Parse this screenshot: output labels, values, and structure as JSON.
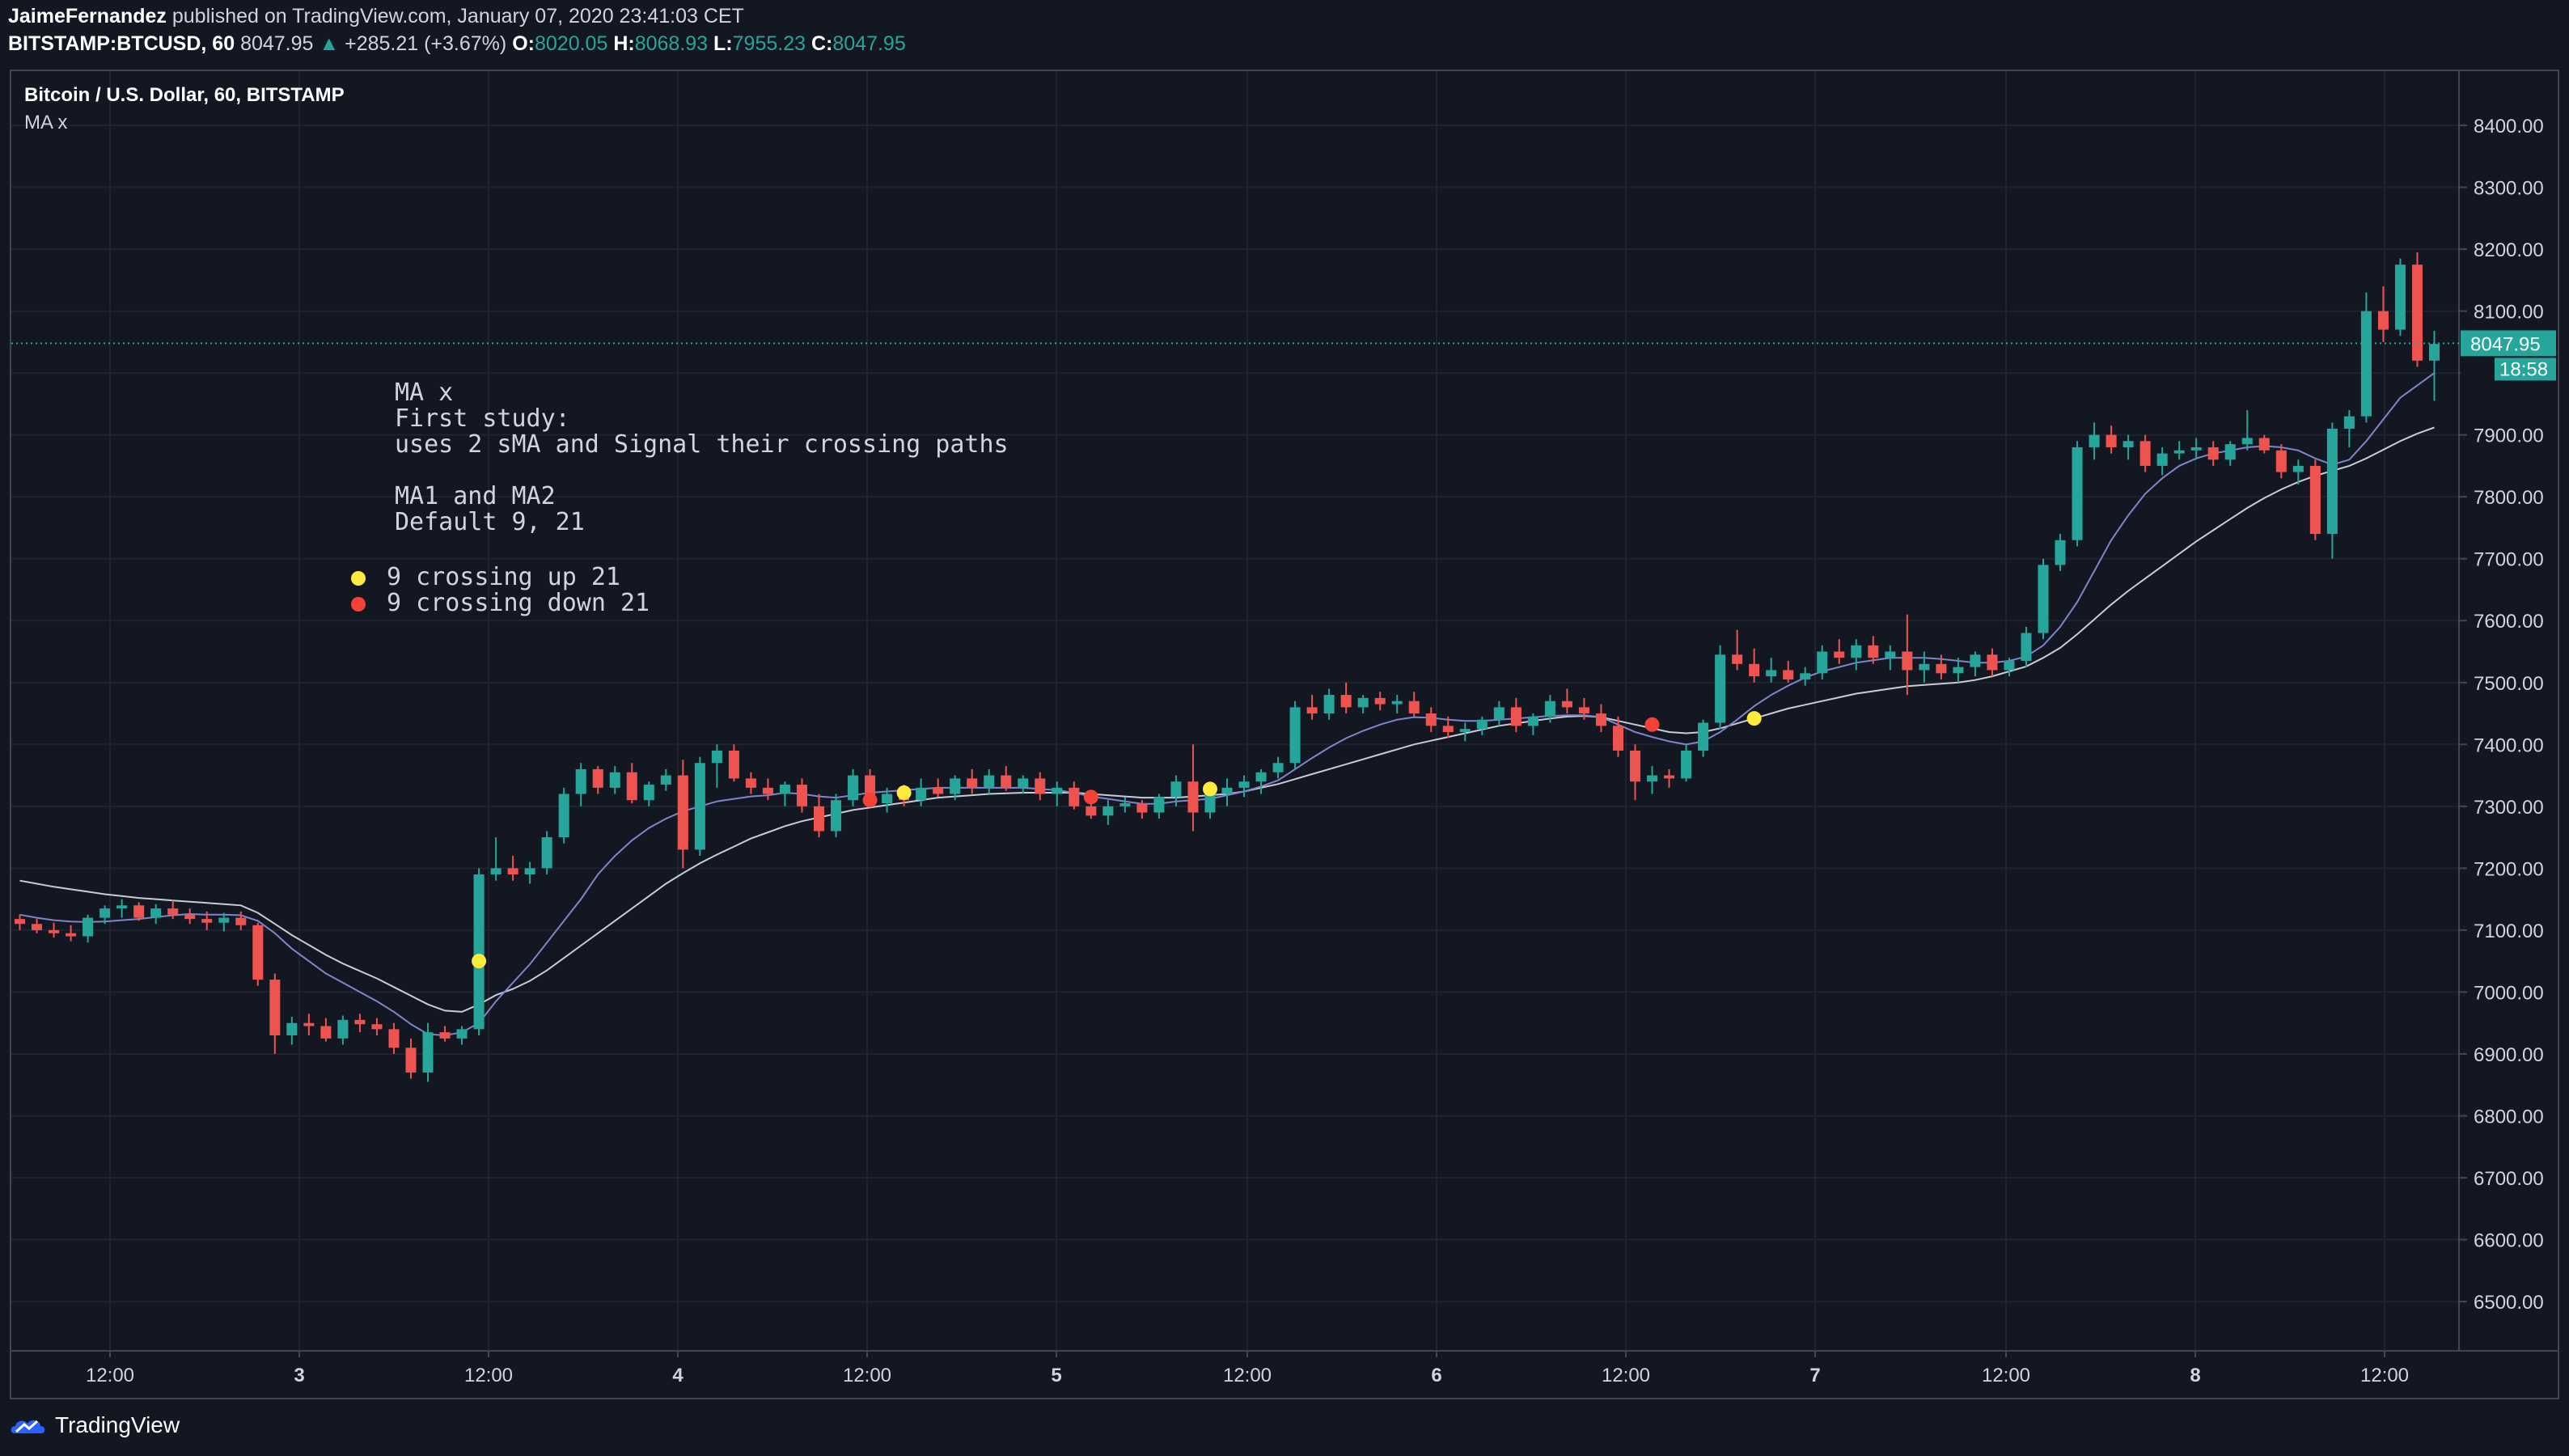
{
  "header": {
    "author": "JaimeFernandez",
    "published_text": "published on TradingView.com, January 07, 2020 23:41:03 CET"
  },
  "quote": {
    "symbol": "BITSTAMP:BTCUSD, 60",
    "last": "8047.95",
    "change": "+285.21 (+3.67%)",
    "o_label": "O:",
    "o_val": "8020.05",
    "h_label": "H:",
    "h_val": "8068.93",
    "l_label": "L:",
    "l_val": "7955.23",
    "c_label": "C:",
    "c_val": "8047.95"
  },
  "legend": {
    "title": "Bitcoin / U.S. Dollar, 60, BITSTAMP",
    "study": "MA x"
  },
  "note": {
    "text": "MA x\nFirst study:\nuses 2 sMA and Signal their crossing paths\n\nMA1 and MA2\nDefault 9, 21",
    "bullet_up": "9 crossing up 21",
    "bullet_down": "9 crossing down 21"
  },
  "price_axis": {
    "labels": [
      "8400.00",
      "8300.00",
      "8200.00",
      "8100.00",
      "8000.00",
      "7900.00",
      "7800.00",
      "7700.00",
      "7600.00",
      "7500.00",
      "7400.00",
      "7300.00",
      "7200.00",
      "7100.00",
      "7000.00",
      "6900.00",
      "6800.00",
      "6700.00",
      "6600.00",
      "6500.00"
    ],
    "last_price_tag": "8047.95",
    "countdown_tag": "18:58"
  },
  "time_axis": {
    "labels": [
      "12:00",
      "3",
      "12:00",
      "4",
      "12:00",
      "5",
      "12:00",
      "6",
      "12:00",
      "7",
      "12:00",
      "8",
      "12:00"
    ]
  },
  "footer": {
    "brand": "TradingView"
  },
  "colors": {
    "background": "#131722",
    "up": "#26a69a",
    "down": "#ef5350",
    "cross_up": "#ffeb3b",
    "cross_down": "#f44336"
  },
  "chart_data": {
    "type": "candlestick",
    "title": "Bitcoin / U.S. Dollar, 60, BITSTAMP",
    "interval": "60",
    "ylim": [
      6450,
      8500
    ],
    "ohlc": [
      [
        7118,
        7125,
        7100,
        7110
      ],
      [
        7110,
        7118,
        7095,
        7100
      ],
      [
        7100,
        7112,
        7088,
        7095
      ],
      [
        7095,
        7108,
        7082,
        7090
      ],
      [
        7090,
        7125,
        7080,
        7120
      ],
      [
        7120,
        7140,
        7110,
        7135
      ],
      [
        7135,
        7150,
        7120,
        7140
      ],
      [
        7140,
        7145,
        7115,
        7120
      ],
      [
        7120,
        7142,
        7110,
        7135
      ],
      [
        7135,
        7148,
        7118,
        7125
      ],
      [
        7125,
        7135,
        7110,
        7118
      ],
      [
        7118,
        7130,
        7100,
        7112
      ],
      [
        7112,
        7128,
        7098,
        7120
      ],
      [
        7120,
        7130,
        7100,
        7108
      ],
      [
        7108,
        7112,
        7010,
        7020
      ],
      [
        7020,
        7030,
        6900,
        6930
      ],
      [
        6930,
        6960,
        6915,
        6950
      ],
      [
        6950,
        6965,
        6930,
        6945
      ],
      [
        6945,
        6958,
        6920,
        6925
      ],
      [
        6925,
        6962,
        6915,
        6955
      ],
      [
        6955,
        6965,
        6935,
        6948
      ],
      [
        6948,
        6958,
        6930,
        6940
      ],
      [
        6940,
        6950,
        6900,
        6910
      ],
      [
        6910,
        6925,
        6860,
        6870
      ],
      [
        6870,
        6950,
        6855,
        6935
      ],
      [
        6935,
        6945,
        6920,
        6925
      ],
      [
        6925,
        6945,
        6915,
        6940
      ],
      [
        6940,
        7200,
        6930,
        7190
      ],
      [
        7190,
        7250,
        7180,
        7200
      ],
      [
        7200,
        7220,
        7180,
        7190
      ],
      [
        7190,
        7210,
        7175,
        7200
      ],
      [
        7200,
        7260,
        7190,
        7250
      ],
      [
        7250,
        7330,
        7240,
        7320
      ],
      [
        7320,
        7370,
        7300,
        7360
      ],
      [
        7360,
        7365,
        7320,
        7330
      ],
      [
        7330,
        7365,
        7320,
        7355
      ],
      [
        7355,
        7370,
        7305,
        7310
      ],
      [
        7310,
        7340,
        7300,
        7335
      ],
      [
        7335,
        7360,
        7325,
        7350
      ],
      [
        7350,
        7375,
        7200,
        7230
      ],
      [
        7230,
        7380,
        7220,
        7370
      ],
      [
        7370,
        7400,
        7330,
        7390
      ],
      [
        7390,
        7400,
        7340,
        7345
      ],
      [
        7345,
        7355,
        7320,
        7330
      ],
      [
        7330,
        7345,
        7310,
        7320
      ],
      [
        7320,
        7340,
        7300,
        7335
      ],
      [
        7335,
        7345,
        7290,
        7300
      ],
      [
        7300,
        7320,
        7250,
        7260
      ],
      [
        7260,
        7320,
        7250,
        7310
      ],
      [
        7310,
        7360,
        7300,
        7350
      ],
      [
        7350,
        7360,
        7300,
        7305
      ],
      [
        7305,
        7330,
        7290,
        7320
      ],
      [
        7320,
        7335,
        7300,
        7310
      ],
      [
        7310,
        7345,
        7300,
        7330
      ],
      [
        7330,
        7345,
        7315,
        7320
      ],
      [
        7320,
        7350,
        7310,
        7345
      ],
      [
        7345,
        7360,
        7320,
        7330
      ],
      [
        7330,
        7360,
        7320,
        7350
      ],
      [
        7350,
        7365,
        7325,
        7330
      ],
      [
        7330,
        7350,
        7320,
        7345
      ],
      [
        7345,
        7355,
        7310,
        7320
      ],
      [
        7320,
        7340,
        7300,
        7330
      ],
      [
        7330,
        7340,
        7295,
        7300
      ],
      [
        7300,
        7320,
        7280,
        7285
      ],
      [
        7285,
        7310,
        7270,
        7300
      ],
      [
        7300,
        7315,
        7290,
        7305
      ],
      [
        7305,
        7310,
        7280,
        7290
      ],
      [
        7290,
        7320,
        7280,
        7315
      ],
      [
        7315,
        7350,
        7300,
        7340
      ],
      [
        7340,
        7400,
        7260,
        7290
      ],
      [
        7290,
        7330,
        7280,
        7320
      ],
      [
        7320,
        7345,
        7300,
        7330
      ],
      [
        7330,
        7350,
        7315,
        7340
      ],
      [
        7340,
        7360,
        7320,
        7355
      ],
      [
        7355,
        7380,
        7345,
        7370
      ],
      [
        7370,
        7470,
        7360,
        7460
      ],
      [
        7460,
        7480,
        7440,
        7450
      ],
      [
        7450,
        7490,
        7440,
        7480
      ],
      [
        7480,
        7500,
        7450,
        7460
      ],
      [
        7460,
        7480,
        7450,
        7475
      ],
      [
        7475,
        7485,
        7455,
        7465
      ],
      [
        7465,
        7480,
        7450,
        7470
      ],
      [
        7470,
        7485,
        7445,
        7450
      ],
      [
        7450,
        7460,
        7420,
        7430
      ],
      [
        7430,
        7445,
        7410,
        7420
      ],
      [
        7420,
        7435,
        7405,
        7425
      ],
      [
        7425,
        7445,
        7415,
        7440
      ],
      [
        7440,
        7470,
        7430,
        7460
      ],
      [
        7460,
        7475,
        7420,
        7430
      ],
      [
        7430,
        7450,
        7415,
        7445
      ],
      [
        7445,
        7480,
        7435,
        7470
      ],
      [
        7470,
        7490,
        7450,
        7460
      ],
      [
        7460,
        7475,
        7440,
        7450
      ],
      [
        7450,
        7465,
        7420,
        7430
      ],
      [
        7430,
        7445,
        7380,
        7390
      ],
      [
        7390,
        7400,
        7310,
        7340
      ],
      [
        7340,
        7365,
        7320,
        7350
      ],
      [
        7350,
        7360,
        7330,
        7345
      ],
      [
        7345,
        7400,
        7340,
        7390
      ],
      [
        7390,
        7440,
        7380,
        7435
      ],
      [
        7435,
        7560,
        7425,
        7545
      ],
      [
        7545,
        7585,
        7520,
        7530
      ],
      [
        7530,
        7555,
        7500,
        7510
      ],
      [
        7510,
        7540,
        7500,
        7520
      ],
      [
        7520,
        7535,
        7500,
        7505
      ],
      [
        7505,
        7525,
        7495,
        7515
      ],
      [
        7515,
        7560,
        7505,
        7550
      ],
      [
        7550,
        7570,
        7530,
        7540
      ],
      [
        7540,
        7570,
        7520,
        7560
      ],
      [
        7560,
        7575,
        7530,
        7540
      ],
      [
        7540,
        7560,
        7520,
        7550
      ],
      [
        7550,
        7610,
        7480,
        7520
      ],
      [
        7520,
        7550,
        7500,
        7530
      ],
      [
        7530,
        7545,
        7505,
        7515
      ],
      [
        7515,
        7540,
        7500,
        7525
      ],
      [
        7525,
        7550,
        7510,
        7545
      ],
      [
        7545,
        7555,
        7510,
        7520
      ],
      [
        7520,
        7540,
        7510,
        7535
      ],
      [
        7535,
        7590,
        7525,
        7580
      ],
      [
        7580,
        7700,
        7570,
        7690
      ],
      [
        7690,
        7740,
        7680,
        7730
      ],
      [
        7730,
        7890,
        7720,
        7880
      ],
      [
        7880,
        7920,
        7860,
        7900
      ],
      [
        7900,
        7915,
        7870,
        7880
      ],
      [
        7880,
        7900,
        7860,
        7890
      ],
      [
        7890,
        7900,
        7840,
        7850
      ],
      [
        7850,
        7880,
        7835,
        7870
      ],
      [
        7870,
        7890,
        7860,
        7875
      ],
      [
        7875,
        7895,
        7860,
        7880
      ],
      [
        7880,
        7890,
        7850,
        7860
      ],
      [
        7860,
        7890,
        7850,
        7885
      ],
      [
        7885,
        7940,
        7875,
        7895
      ],
      [
        7895,
        7900,
        7870,
        7875
      ],
      [
        7875,
        7885,
        7830,
        7840
      ],
      [
        7840,
        7860,
        7820,
        7850
      ],
      [
        7850,
        7860,
        7730,
        7740
      ],
      [
        7740,
        7920,
        7700,
        7910
      ],
      [
        7910,
        7940,
        7880,
        7930
      ],
      [
        7930,
        8130,
        7920,
        8100
      ],
      [
        8100,
        8140,
        8050,
        8070
      ],
      [
        8070,
        8185,
        8060,
        8175
      ],
      [
        8175,
        8195,
        8010,
        8020
      ],
      [
        8020,
        8068,
        7955,
        8047
      ]
    ],
    "ma9": [
      7125,
      7120,
      7116,
      7114,
      7113,
      7114,
      7116,
      7118,
      7121,
      7124,
      7126,
      7125,
      7125,
      7124,
      7115,
      7095,
      7070,
      7050,
      7030,
      7015,
      7000,
      6985,
      6968,
      6948,
      6932,
      6930,
      6935,
      6950,
      6985,
      7015,
      7045,
      7080,
      7115,
      7150,
      7190,
      7220,
      7245,
      7265,
      7280,
      7292,
      7300,
      7308,
      7312,
      7316,
      7318,
      7322,
      7320,
      7316,
      7314,
      7318,
      7322,
      7324,
      7326,
      7328,
      7330,
      7330,
      7330,
      7330,
      7330,
      7330,
      7328,
      7326,
      7322,
      7316,
      7312,
      7308,
      7304,
      7304,
      7308,
      7310,
      7312,
      7318,
      7324,
      7332,
      7342,
      7360,
      7378,
      7395,
      7410,
      7422,
      7432,
      7440,
      7444,
      7443,
      7440,
      7438,
      7438,
      7440,
      7442,
      7444,
      7446,
      7447,
      7447,
      7444,
      7432,
      7420,
      7412,
      7405,
      7400,
      7405,
      7420,
      7440,
      7462,
      7480,
      7495,
      7508,
      7518,
      7525,
      7532,
      7536,
      7540,
      7540,
      7540,
      7538,
      7535,
      7532,
      7532,
      7535,
      7542,
      7560,
      7590,
      7630,
      7680,
      7730,
      7770,
      7805,
      7830,
      7850,
      7862,
      7870,
      7875,
      7880,
      7882,
      7880,
      7875,
      7862,
      7852,
      7860,
      7890,
      7925,
      7960,
      7980,
      8000
    ],
    "ma21": [
      7180,
      7175,
      7170,
      7166,
      7162,
      7158,
      7155,
      7152,
      7150,
      7148,
      7146,
      7144,
      7142,
      7140,
      7128,
      7110,
      7092,
      7076,
      7060,
      7046,
      7034,
      7022,
      7008,
      6994,
      6980,
      6970,
      6968,
      6980,
      6995,
      7005,
      7018,
      7035,
      7055,
      7075,
      7095,
      7115,
      7135,
      7155,
      7175,
      7192,
      7208,
      7222,
      7235,
      7248,
      7258,
      7268,
      7276,
      7282,
      7288,
      7294,
      7298,
      7302,
      7306,
      7310,
      7314,
      7316,
      7318,
      7320,
      7321,
      7322,
      7322,
      7322,
      7322,
      7320,
      7318,
      7316,
      7314,
      7314,
      7314,
      7316,
      7318,
      7320,
      7324,
      7330,
      7336,
      7344,
      7352,
      7360,
      7368,
      7376,
      7384,
      7392,
      7400,
      7406,
      7412,
      7418,
      7424,
      7430,
      7434,
      7438,
      7442,
      7445,
      7446,
      7444,
      7438,
      7432,
      7426,
      7420,
      7418,
      7420,
      7426,
      7434,
      7442,
      7450,
      7458,
      7464,
      7470,
      7476,
      7482,
      7486,
      7490,
      7494,
      7496,
      7498,
      7500,
      7504,
      7510,
      7518,
      7526,
      7540,
      7556,
      7578,
      7602,
      7626,
      7648,
      7668,
      7688,
      7708,
      7728,
      7746,
      7764,
      7782,
      7798,
      7812,
      7824,
      7834,
      7842,
      7850,
      7862,
      7876,
      7890,
      7902,
      7912
    ],
    "crossovers": [
      {
        "index": 27,
        "price": 7050,
        "dir": "up"
      },
      {
        "index": 50,
        "price": 7310,
        "dir": "down"
      },
      {
        "index": 52,
        "price": 7322,
        "dir": "up"
      },
      {
        "index": 63,
        "price": 7315,
        "dir": "down"
      },
      {
        "index": 70,
        "price": 7328,
        "dir": "up"
      },
      {
        "index": 96,
        "price": 7432,
        "dir": "down"
      },
      {
        "index": 102,
        "price": 7442,
        "dir": "up"
      }
    ]
  }
}
